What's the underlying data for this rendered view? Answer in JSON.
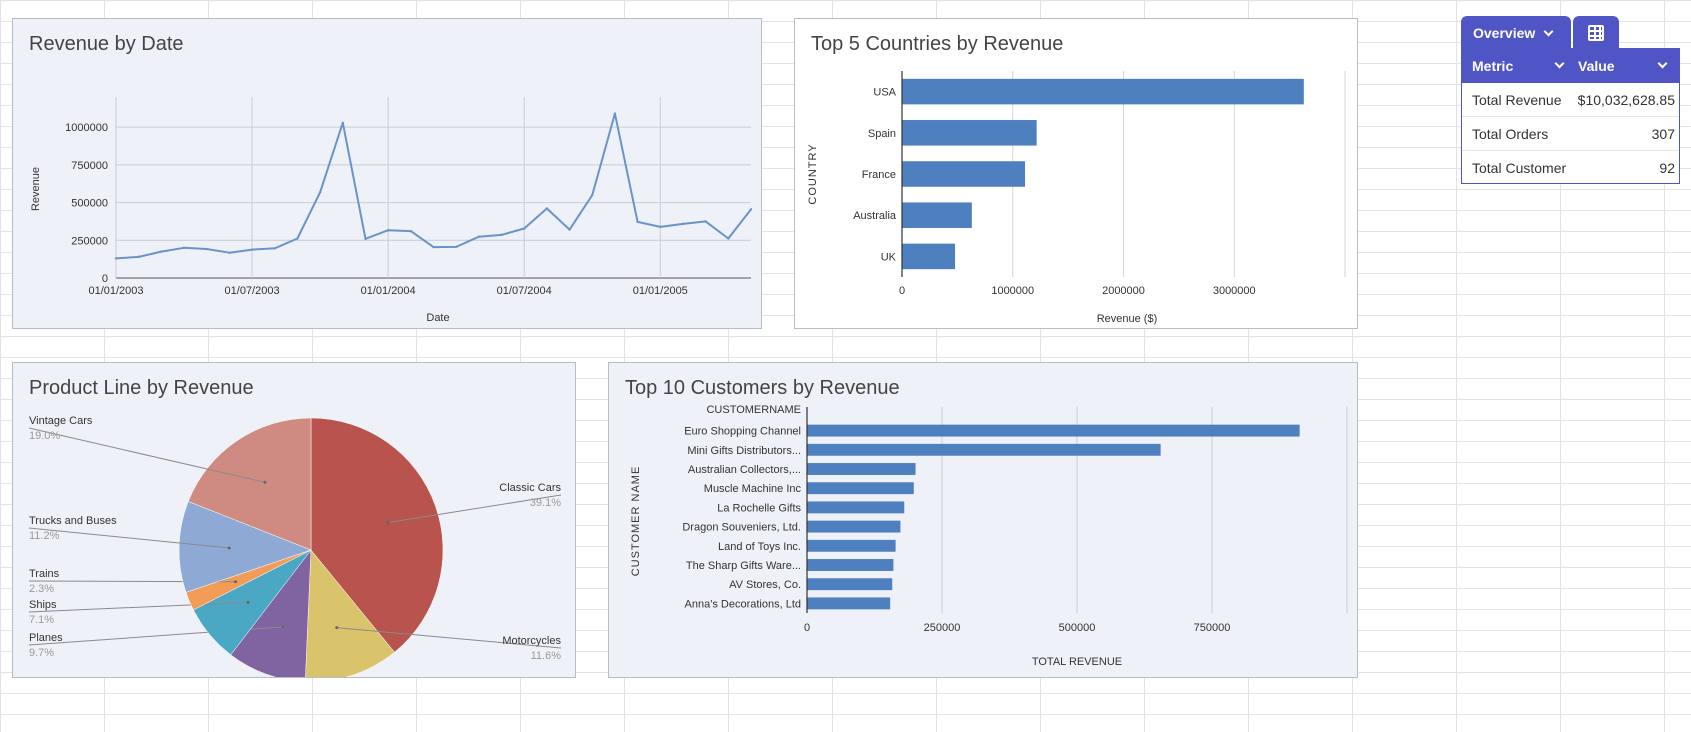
{
  "charts": {
    "revenue_by_date": {
      "title": "Revenue by Date",
      "chart_data": {
        "type": "line",
        "title": "Revenue by Date",
        "xlabel": "Date",
        "ylabel": "Revenue",
        "x": [
          "2003-01",
          "2003-02",
          "2003-03",
          "2003-04",
          "2003-05",
          "2003-06",
          "2003-07",
          "2003-08",
          "2003-09",
          "2003-10",
          "2003-11",
          "2003-12",
          "2004-01",
          "2004-02",
          "2004-03",
          "2004-04",
          "2004-05",
          "2004-06",
          "2004-07",
          "2004-08",
          "2004-09",
          "2004-10",
          "2004-11",
          "2004-12",
          "2005-01",
          "2005-02",
          "2005-03",
          "2005-04",
          "2005-05"
        ],
        "values": [
          130000,
          140000,
          175000,
          200000,
          192000,
          168000,
          188000,
          197000,
          262000,
          568000,
          1029000,
          260000,
          317000,
          311000,
          205000,
          206000,
          274000,
          286000,
          328000,
          461000,
          321000,
          550000,
          1090000,
          372000,
          339000,
          359000,
          375000,
          262000,
          455000
        ],
        "x_tick_labels": [
          "01/01/2003",
          "01/07/2003",
          "01/01/2004",
          "01/07/2004",
          "01/01/2005"
        ],
        "y_tick_labels": [
          "0",
          "250000",
          "500000",
          "750000",
          "1000000"
        ],
        "ylim": [
          0,
          1200000
        ],
        "grid": true,
        "color": "#6a93c8"
      }
    },
    "top5_countries": {
      "title": "Top 5 Countries by Revenue",
      "chart_data": {
        "type": "bar",
        "orientation": "horizontal",
        "title": "Top 5 Countries by Revenue",
        "xlabel": "Revenue ($)",
        "ylabel": "COUNTRY",
        "categories": [
          "USA",
          "Spain",
          "France",
          "Australia",
          "UK"
        ],
        "values": [
          3627982,
          1215686,
          1110917,
          630623,
          478880
        ],
        "x_tick_labels": [
          "0",
          "1000000",
          "2000000",
          "3000000"
        ],
        "xlim": [
          0,
          4000000
        ],
        "grid": true,
        "color": "#4e7fbe"
      }
    },
    "product_line": {
      "title": "Product Line by Revenue",
      "chart_data": {
        "type": "pie",
        "title": "Product Line by Revenue",
        "slices": [
          {
            "name": "Classic Cars",
            "pct": "39.1%",
            "value": 39.1,
            "color": "#b8534d"
          },
          {
            "name": "Motorcycles",
            "pct": "11.6%",
            "value": 11.6,
            "color": "#d9c46c"
          },
          {
            "name": "Planes",
            "pct": "9.7%",
            "value": 9.7,
            "color": "#8064a2"
          },
          {
            "name": "Ships",
            "pct": "7.1%",
            "value": 7.1,
            "color": "#4aa8c4"
          },
          {
            "name": "Trains",
            "pct": "2.3%",
            "value": 2.3,
            "color": "#f29c58"
          },
          {
            "name": "Trucks and Buses",
            "pct": "11.2%",
            "value": 11.2,
            "color": "#8eaad4"
          },
          {
            "name": "Vintage Cars",
            "pct": "19.0%",
            "value": 19.0,
            "color": "#cf8a82"
          }
        ]
      }
    },
    "top10_customers": {
      "title": "Top 10 Customers by Revenue",
      "chart_data": {
        "type": "bar",
        "orientation": "horizontal",
        "title": "Top 10 Customers by Revenue",
        "xlabel": "TOTAL REVENUE",
        "ylabel": "CUSTOMER NAME",
        "header_label": "CUSTOMERNAME",
        "categories": [
          "Euro Shopping Channel",
          "Mini Gifts Distributors...",
          "Australian Collectors,...",
          "Muscle Machine Inc",
          "La Rochelle Gifts",
          "Dragon Souveniers, Ltd.",
          "Land of Toys Inc.",
          "The Sharp Gifts Ware...",
          "AV Stores, Co.",
          "Anna's Decorations, Ltd"
        ],
        "values": [
          912294,
          654858,
          200995,
          197737,
          180124,
          172989,
          164069,
          160010,
          157808,
          153996
        ],
        "x_tick_labels": [
          "0",
          "250000",
          "500000",
          "750000"
        ],
        "xlim": [
          0,
          1000000
        ],
        "grid": true,
        "color": "#4e7fbe"
      }
    }
  },
  "overview": {
    "tab_label": "Overview",
    "tab_icon": "table-icon",
    "header": {
      "metric": "Metric",
      "value": "Value"
    },
    "rows": [
      {
        "metric": "Total Revenue",
        "value": "$10,032,628.85"
      },
      {
        "metric": "Total Orders",
        "value": "307"
      },
      {
        "metric": "Total Customer",
        "value": "92"
      }
    ],
    "accent": "#5055c6"
  }
}
